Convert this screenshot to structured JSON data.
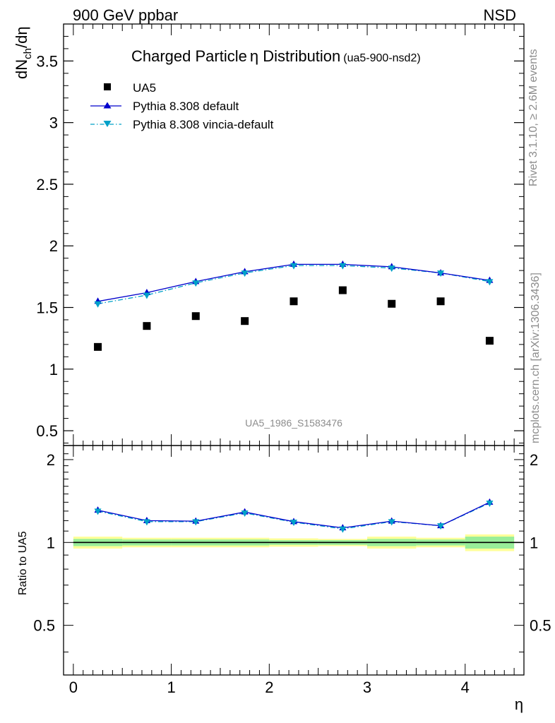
{
  "chart_data": [
    {
      "type": "scatter",
      "header_left": "900 GeV ppbar",
      "header_right": "NSD",
      "title": "Charged Particle",
      "title_symbol": "η",
      "title_rest": " Distribution",
      "title_tag": "(ua5-900-nsd2)",
      "ylabel_main": "dN",
      "ylabel_sub": "ch",
      "ylabel_tail": "/dη",
      "watermark": "UA5_1986_S1583476",
      "side_text_top": "Rivet 3.1.10, ≥ 2.6M events",
      "side_text_bottom": "mcplots.cern.ch [arXiv:1306.3436]",
      "xlim": [
        -0.1,
        4.6
      ],
      "ylim": [
        0.38,
        3.8
      ],
      "yticks": [
        0.5,
        1,
        1.5,
        2,
        2.5,
        3,
        3.5
      ],
      "ytick_labels": [
        "0.5",
        "1",
        "1.5",
        "2",
        "2.5",
        "3",
        "3.5"
      ],
      "x": [
        0.25,
        0.75,
        1.25,
        1.75,
        2.25,
        2.75,
        3.25,
        3.75,
        4.25
      ],
      "series": [
        {
          "name": "UA5",
          "values": [
            1.18,
            1.35,
            1.43,
            1.39,
            1.55,
            1.64,
            1.53,
            1.55,
            1.23
          ],
          "color": "#000000",
          "marker": "square"
        },
        {
          "name": "Pythia 8.308 default",
          "values": [
            1.55,
            1.62,
            1.71,
            1.79,
            1.85,
            1.85,
            1.83,
            1.78,
            1.72
          ],
          "color": "#0000cc",
          "marker": "triangle-up"
        },
        {
          "name": "Pythia 8.308 vincia-default",
          "values": [
            1.53,
            1.6,
            1.7,
            1.78,
            1.84,
            1.84,
            1.82,
            1.78,
            1.71
          ],
          "color": "#00a0c8",
          "marker": "triangle-down"
        }
      ],
      "legend_position": "top-left"
    },
    {
      "type": "line",
      "ylabel": "Ratio to UA5",
      "xlabel": "η",
      "xlim": [
        -0.1,
        4.6
      ],
      "ylim": [
        0.33,
        2.25
      ],
      "xticks": [
        0,
        1,
        2,
        3,
        4
      ],
      "xtick_labels": [
        "0",
        "1",
        "2",
        "3",
        "4"
      ],
      "yticks": [
        0.5,
        1,
        2
      ],
      "ytick_labels": [
        "0.5",
        "1",
        "2"
      ],
      "x": [
        0.25,
        0.75,
        1.25,
        1.75,
        2.25,
        2.75,
        3.25,
        3.75,
        4.25
      ],
      "band_edges": [
        0,
        0.5,
        1,
        1.5,
        2,
        2.5,
        3,
        3.5,
        4,
        4.5
      ],
      "band_outer": [
        [
          0.95,
          1.05
        ],
        [
          0.96,
          1.04
        ],
        [
          0.96,
          1.04
        ],
        [
          0.96,
          1.04
        ],
        [
          0.965,
          1.035
        ],
        [
          0.97,
          1.03
        ],
        [
          0.95,
          1.05
        ],
        [
          0.96,
          1.04
        ],
        [
          0.93,
          1.07
        ]
      ],
      "band_inner": [
        [
          0.97,
          1.03
        ],
        [
          0.975,
          1.025
        ],
        [
          0.975,
          1.025
        ],
        [
          0.975,
          1.025
        ],
        [
          0.98,
          1.02
        ],
        [
          0.98,
          1.02
        ],
        [
          0.97,
          1.03
        ],
        [
          0.975,
          1.025
        ],
        [
          0.95,
          1.05
        ]
      ],
      "series": [
        {
          "name": "Pythia 8.308 default",
          "values": [
            1.31,
            1.2,
            1.195,
            1.29,
            1.19,
            1.13,
            1.195,
            1.15,
            1.4
          ],
          "color": "#0000cc"
        },
        {
          "name": "Pythia 8.308 vincia-default",
          "values": [
            1.3,
            1.19,
            1.19,
            1.28,
            1.185,
            1.12,
            1.19,
            1.15,
            1.39
          ],
          "color": "#00a0c8"
        }
      ],
      "colors": {
        "band_outer": "#ffff99",
        "band_inner": "#99ee99",
        "reference_line": "#000000"
      }
    }
  ]
}
